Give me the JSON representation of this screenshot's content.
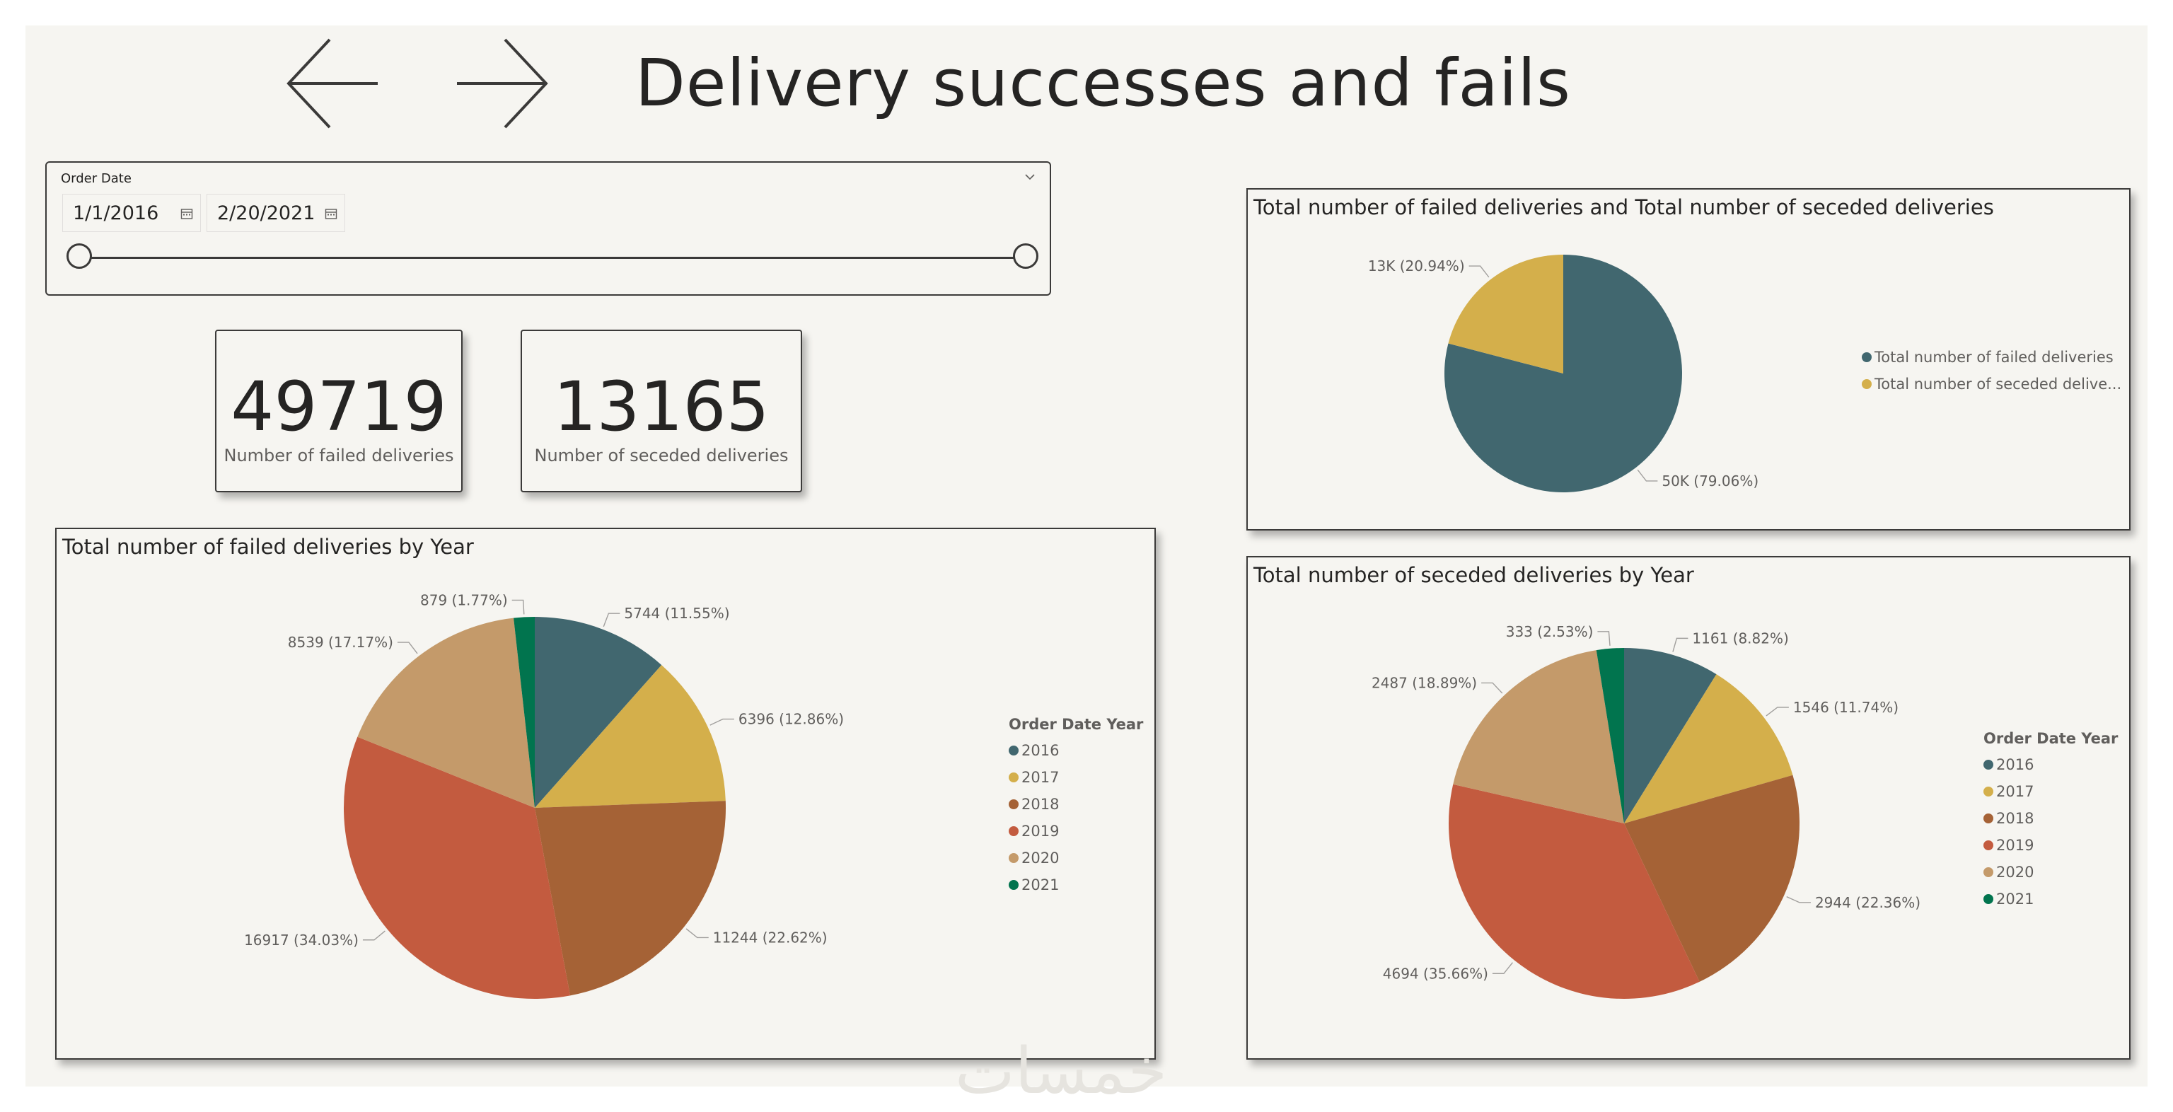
{
  "header": {
    "title": "Delivery successes and fails"
  },
  "slicer": {
    "label": "Order Date",
    "start_date": "1/1/2016",
    "end_date": "2/20/2021"
  },
  "cards": [
    {
      "value": "49719",
      "caption": "Number of failed deliveries"
    },
    {
      "value": "13165",
      "caption": "Number of seceded deliveries"
    }
  ],
  "colors": {
    "c2016": "#41676f",
    "c2017": "#d4af4b",
    "c2018": "#a56236",
    "c2019": "#c35b3f",
    "c2020": "#c49a6a",
    "c2021": "#01744e",
    "failed": "#41676f",
    "seceded": "#d4af4b"
  },
  "watermark": "خمسات",
  "chart_data": [
    {
      "type": "pie",
      "title": "Total number of failed deliveries by Year",
      "legend_title": "Order Date Year",
      "legend_position": "right",
      "categories": [
        "2016",
        "2017",
        "2018",
        "2019",
        "2020",
        "2021"
      ],
      "values": [
        5744,
        6396,
        11244,
        16917,
        8539,
        879
      ],
      "labels": [
        "5744 (11.55%)",
        "6396 (12.86%)",
        "11244 (22.62%)",
        "16917 (34.03%)",
        "8539 (17.17%)",
        "879 (1.77%)"
      ]
    },
    {
      "type": "pie",
      "title": "Total number of failed deliveries and Total number of seceded deliveries",
      "legend_position": "right",
      "categories": [
        "Total number of failed deliveries",
        "Total number of seceded delive..."
      ],
      "values": [
        49719,
        13165
      ],
      "labels": [
        "50K (79.06%)",
        "13K (20.94%)"
      ]
    },
    {
      "type": "pie",
      "title": "Total number of seceded deliveries by Year",
      "legend_title": "Order Date Year",
      "legend_position": "right",
      "categories": [
        "2016",
        "2017",
        "2018",
        "2019",
        "2020",
        "2021"
      ],
      "values": [
        1161,
        1546,
        2944,
        4694,
        2487,
        333
      ],
      "labels": [
        "1161 (8.82%)",
        "1546 (11.74%)",
        "2944 (22.36%)",
        "4694 (35.66%)",
        "2487 (18.89%)",
        "333 (2.53%)"
      ]
    }
  ]
}
